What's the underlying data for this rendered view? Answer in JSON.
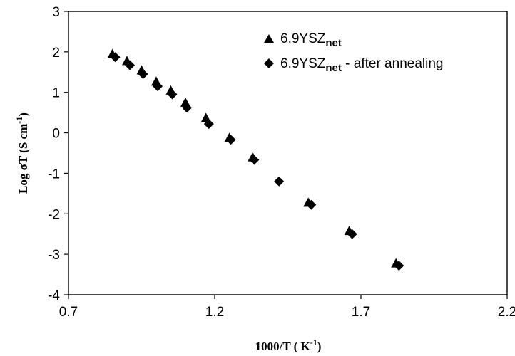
{
  "chart_data": {
    "type": "scatter",
    "xlabel_main": "1000/T ( K",
    "xlabel_sup": "-1",
    "xlabel_end": ")",
    "ylabel_main": "Log σT (S cm",
    "ylabel_sup": "-1",
    "ylabel_end": ")",
    "xlim": [
      0.7,
      2.2
    ],
    "ylim": [
      -4,
      3
    ],
    "xticks": [
      "0.7",
      "1.2",
      "1.7",
      "2.2"
    ],
    "yticks": [
      "-4",
      "-3",
      "-2",
      "-1",
      "0",
      "1",
      "2",
      "3"
    ],
    "grid": false,
    "legend_position": "top-right",
    "series": [
      {
        "name_main": "6.9YSZ",
        "name_sub": "net",
        "name_rest": "",
        "marker": "triangle",
        "color": "#000000",
        "x": [
          0.85,
          0.9,
          0.95,
          1.0,
          1.05,
          1.1,
          1.17,
          1.25,
          1.33,
          1.52,
          1.66,
          1.82
        ],
        "y": [
          1.95,
          1.78,
          1.55,
          1.27,
          1.05,
          0.75,
          0.37,
          -0.12,
          -0.6,
          -1.72,
          -2.42,
          -3.22
        ]
      },
      {
        "name_main": "6.9YSZ",
        "name_sub": "net",
        "name_rest": " - after annealing",
        "marker": "diamond",
        "color": "#000000",
        "x": [
          0.86,
          0.91,
          0.955,
          1.005,
          1.055,
          1.105,
          1.18,
          1.255,
          1.335,
          1.42,
          1.53,
          1.67,
          1.83
        ],
        "y": [
          1.87,
          1.67,
          1.45,
          1.15,
          0.95,
          0.62,
          0.22,
          -0.17,
          -0.67,
          -1.2,
          -1.78,
          -2.5,
          -3.28
        ]
      }
    ]
  }
}
